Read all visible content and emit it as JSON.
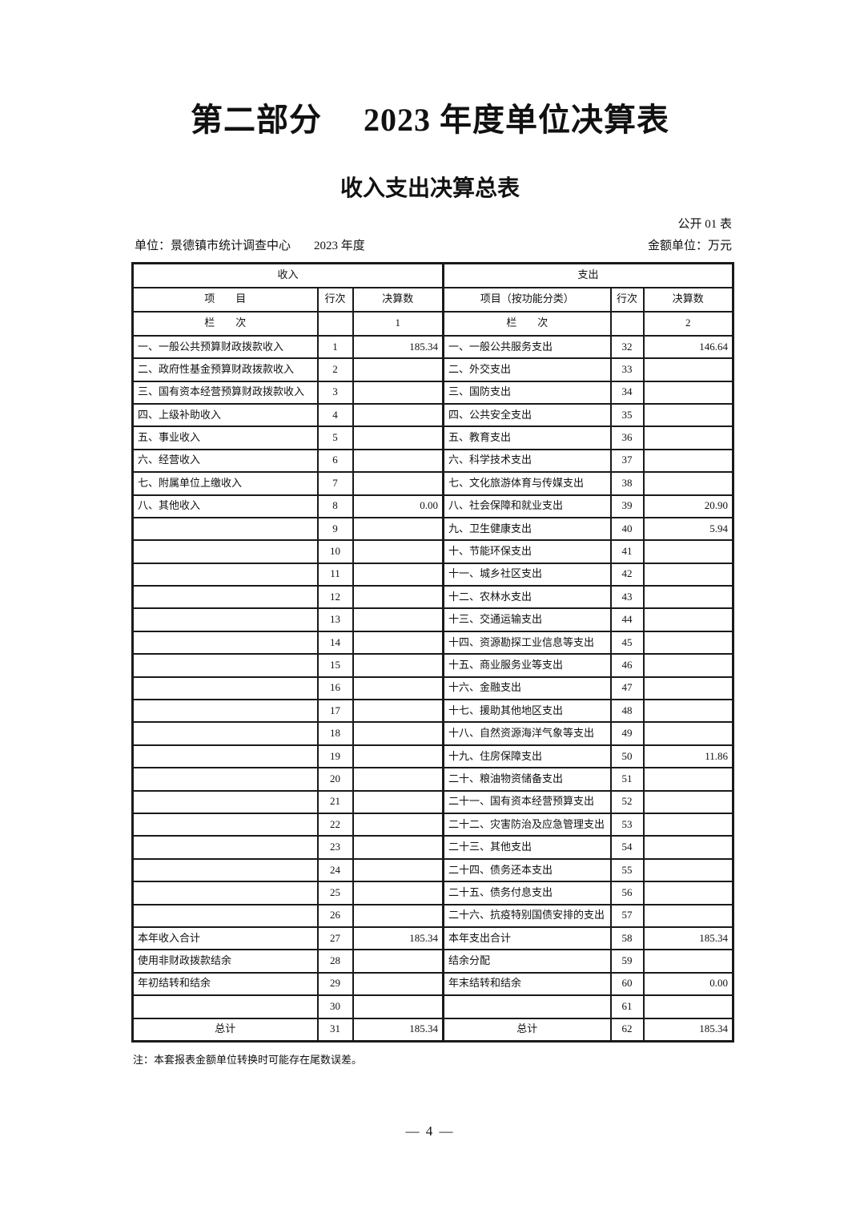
{
  "header": {
    "part_title": "第二部分　 2023 年度单位决算表",
    "table_title": "收入支出决算总表",
    "table_code": "公开 01 表",
    "unit": "单位：景德镇市统计调查中心",
    "year": "2023 年度",
    "amount_unit": "金额单位：万元"
  },
  "table": {
    "income_header": "收入",
    "expense_header": "支出",
    "columns": {
      "left_item": "项　　目",
      "left_line": "行次",
      "left_value": "决算数",
      "right_item": "项目（按功能分类）",
      "right_line": "行次",
      "right_value": "决算数"
    },
    "lanci": {
      "left_label": "栏　　次",
      "left_no": "1",
      "right_label": "栏　　次",
      "right_no": "2"
    },
    "rows": [
      {
        "left_item": "一、一般公共预算财政拨款收入",
        "left_row": "1",
        "left_amount": "185.34",
        "left_style": "",
        "right_item": "一、一般公共服务支出",
        "right_row": "32",
        "right_amount": "146.64",
        "right_style": ""
      },
      {
        "left_item": "二、政府性基金预算财政拨款收入",
        "left_row": "2",
        "left_amount": "",
        "left_style": "",
        "right_item": "二、外交支出",
        "right_row": "33",
        "right_amount": "",
        "right_style": ""
      },
      {
        "left_item": "三、国有资本经营预算财政拨款收入",
        "left_row": "3",
        "left_amount": "",
        "left_style": "",
        "right_item": "三、国防支出",
        "right_row": "34",
        "right_amount": "",
        "right_style": ""
      },
      {
        "left_item": "四、上级补助收入",
        "left_row": "4",
        "left_amount": "",
        "left_style": "",
        "right_item": "四、公共安全支出",
        "right_row": "35",
        "right_amount": "",
        "right_style": ""
      },
      {
        "left_item": "五、事业收入",
        "left_row": "5",
        "left_amount": "",
        "left_style": "",
        "right_item": "五、教育支出",
        "right_row": "36",
        "right_amount": "",
        "right_style": ""
      },
      {
        "left_item": "六、经营收入",
        "left_row": "6",
        "left_amount": "",
        "left_style": "",
        "right_item": "六、科学技术支出",
        "right_row": "37",
        "right_amount": "",
        "right_style": ""
      },
      {
        "left_item": "七、附属单位上缴收入",
        "left_row": "7",
        "left_amount": "",
        "left_style": "",
        "right_item": "七、文化旅游体育与传媒支出",
        "right_row": "38",
        "right_amount": "",
        "right_style": ""
      },
      {
        "left_item": "八、其他收入",
        "left_row": "8",
        "left_amount": "0.00",
        "left_style": "",
        "right_item": "八、社会保障和就业支出",
        "right_row": "39",
        "right_amount": "20.90",
        "right_style": ""
      },
      {
        "left_item": "",
        "left_row": "9",
        "left_amount": "",
        "left_style": "",
        "right_item": "九、卫生健康支出",
        "right_row": "40",
        "right_amount": "5.94",
        "right_style": ""
      },
      {
        "left_item": "",
        "left_row": "10",
        "left_amount": "",
        "left_style": "",
        "right_item": "十、节能环保支出",
        "right_row": "41",
        "right_amount": "",
        "right_style": ""
      },
      {
        "left_item": "",
        "left_row": "11",
        "left_amount": "",
        "left_style": "",
        "right_item": "十一、城乡社区支出",
        "right_row": "42",
        "right_amount": "",
        "right_style": ""
      },
      {
        "left_item": "",
        "left_row": "12",
        "left_amount": "",
        "left_style": "",
        "right_item": "十二、农林水支出",
        "right_row": "43",
        "right_amount": "",
        "right_style": ""
      },
      {
        "left_item": "",
        "left_row": "13",
        "left_amount": "",
        "left_style": "",
        "right_item": "十三、交通运输支出",
        "right_row": "44",
        "right_amount": "",
        "right_style": ""
      },
      {
        "left_item": "",
        "left_row": "14",
        "left_amount": "",
        "left_style": "",
        "right_item": "十四、资源勘探工业信息等支出",
        "right_row": "45",
        "right_amount": "",
        "right_style": ""
      },
      {
        "left_item": "",
        "left_row": "15",
        "left_amount": "",
        "left_style": "",
        "right_item": "十五、商业服务业等支出",
        "right_row": "46",
        "right_amount": "",
        "right_style": ""
      },
      {
        "left_item": "",
        "left_row": "16",
        "left_amount": "",
        "left_style": "",
        "right_item": "十六、金融支出",
        "right_row": "47",
        "right_amount": "",
        "right_style": ""
      },
      {
        "left_item": "",
        "left_row": "17",
        "left_amount": "",
        "left_style": "",
        "right_item": "十七、援助其他地区支出",
        "right_row": "48",
        "right_amount": "",
        "right_style": ""
      },
      {
        "left_item": "",
        "left_row": "18",
        "left_amount": "",
        "left_style": "",
        "right_item": "十八、自然资源海洋气象等支出",
        "right_row": "49",
        "right_amount": "",
        "right_style": ""
      },
      {
        "left_item": "",
        "left_row": "19",
        "left_amount": "",
        "left_style": "",
        "right_item": "十九、住房保障支出",
        "right_row": "50",
        "right_amount": "11.86",
        "right_style": ""
      },
      {
        "left_item": "",
        "left_row": "20",
        "left_amount": "",
        "left_style": "",
        "right_item": "二十、粮油物资储备支出",
        "right_row": "51",
        "right_amount": "",
        "right_style": ""
      },
      {
        "left_item": "",
        "left_row": "21",
        "left_amount": "",
        "left_style": "",
        "right_item": "二十一、国有资本经营预算支出",
        "right_row": "52",
        "right_amount": "",
        "right_style": ""
      },
      {
        "left_item": "",
        "left_row": "22",
        "left_amount": "",
        "left_style": "",
        "right_item": "二十二、灾害防治及应急管理支出",
        "right_row": "53",
        "right_amount": "",
        "right_style": ""
      },
      {
        "left_item": "",
        "left_row": "23",
        "left_amount": "",
        "left_style": "",
        "right_item": "二十三、其他支出",
        "right_row": "54",
        "right_amount": "",
        "right_style": ""
      },
      {
        "left_item": "",
        "left_row": "24",
        "left_amount": "",
        "left_style": "",
        "right_item": "二十四、债务还本支出",
        "right_row": "55",
        "right_amount": "",
        "right_style": ""
      },
      {
        "left_item": "",
        "left_row": "25",
        "left_amount": "",
        "left_style": "",
        "right_item": "二十五、债务付息支出",
        "right_row": "56",
        "right_amount": "",
        "right_style": ""
      },
      {
        "left_item": "",
        "left_row": "26",
        "left_amount": "",
        "left_style": "",
        "right_item": "二十六、抗疫特别国债安排的支出",
        "right_row": "57",
        "right_amount": "",
        "right_style": ""
      },
      {
        "left_item": "本年收入合计",
        "left_row": "27",
        "left_amount": "185.34",
        "left_style": "",
        "right_item": "本年支出合计",
        "right_row": "58",
        "right_amount": "185.34",
        "right_style": ""
      },
      {
        "left_item": "使用非财政拨款结余",
        "left_row": "28",
        "left_amount": "",
        "left_style": "indent",
        "right_item": "结余分配",
        "right_row": "59",
        "right_amount": "",
        "right_style": "indent"
      },
      {
        "left_item": "年初结转和结余",
        "left_row": "29",
        "left_amount": "",
        "left_style": "indent",
        "right_item": "年末结转和结余",
        "right_row": "60",
        "right_amount": "0.00",
        "right_style": "indent"
      },
      {
        "left_item": "",
        "left_row": "30",
        "left_amount": "",
        "left_style": "",
        "right_item": "",
        "right_row": "61",
        "right_amount": "",
        "right_style": ""
      },
      {
        "left_item": "总计",
        "left_row": "31",
        "left_amount": "185.34",
        "left_style": "total",
        "right_item": "总计",
        "right_row": "62",
        "right_amount": "185.34",
        "right_style": "total"
      }
    ]
  },
  "footer": {
    "note": "注：本套报表金额单位转换时可能存在尾数误差。",
    "page_number": "—  4  —"
  }
}
